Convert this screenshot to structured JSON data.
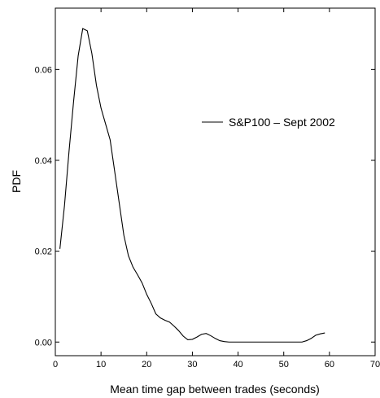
{
  "chart_data": {
    "type": "line",
    "title": "",
    "xlabel": "Mean time gap between trades (seconds)",
    "ylabel": "PDF",
    "xlim": [
      0,
      70
    ],
    "ylim": [
      -0.003,
      0.0735
    ],
    "x_ticks": [
      0,
      10,
      20,
      30,
      40,
      50,
      60,
      70
    ],
    "x_tick_labels": [
      "0",
      "10",
      "20",
      "30",
      "40",
      "50",
      "60",
      "70"
    ],
    "y_ticks": [
      0.0,
      0.02,
      0.04,
      0.06
    ],
    "y_tick_labels": [
      "0.00",
      "0.02",
      "0.04",
      "0.06"
    ],
    "grid": false,
    "legend_position": "upper-right",
    "series": [
      {
        "name": "S&P100 – Sept 2002",
        "color": "#000000",
        "x": [
          1,
          2,
          3,
          4,
          5,
          6,
          7,
          8,
          9,
          10,
          11,
          12,
          13,
          14,
          15,
          16,
          17,
          18,
          19,
          20,
          21,
          22,
          23,
          24,
          25,
          26,
          27,
          28,
          29,
          30,
          31,
          32,
          33,
          34,
          35,
          36,
          37,
          38,
          39,
          40,
          41,
          42,
          43,
          44,
          45,
          46,
          47,
          48,
          49,
          50,
          51,
          52,
          53,
          54,
          55,
          56,
          57,
          58,
          59
        ],
        "y": [
          0.0205,
          0.03,
          0.042,
          0.053,
          0.063,
          0.069,
          0.0685,
          0.0635,
          0.0565,
          0.0515,
          0.048,
          0.0445,
          0.0375,
          0.0305,
          0.0235,
          0.019,
          0.0165,
          0.0148,
          0.013,
          0.0105,
          0.0085,
          0.0062,
          0.0053,
          0.0048,
          0.0044,
          0.0035,
          0.0025,
          0.0013,
          0.0005,
          0.0006,
          0.0011,
          0.0017,
          0.0019,
          0.0014,
          0.0008,
          0.0003,
          0.0001,
          0.0,
          0.0,
          0.0,
          0.0,
          0.0,
          0.0,
          0.0,
          0.0,
          0.0,
          0.0,
          0.0,
          0.0,
          0.0,
          0.0,
          0.0,
          0.0,
          0.0,
          0.0003,
          0.0008,
          0.0015,
          0.0018,
          0.002
        ]
      }
    ]
  }
}
